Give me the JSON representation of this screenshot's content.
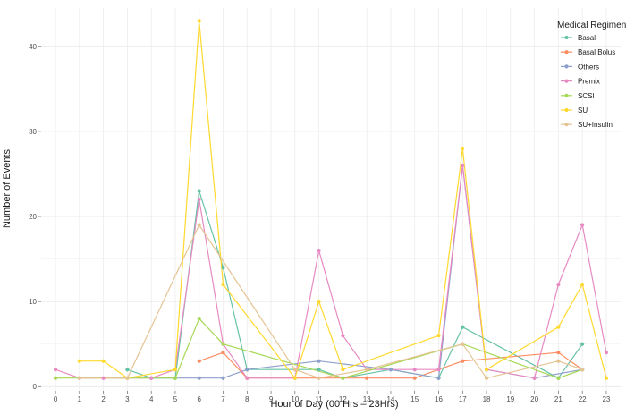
{
  "chart_data": {
    "type": "line",
    "title": "",
    "xlabel": "Hour of Day (00 Hrs – 23Hrs)",
    "ylabel": "Number of Events",
    "x_ticks": [
      "0",
      "1",
      "2",
      "3",
      "4",
      "5",
      "6",
      "7",
      "8",
      "9",
      "10",
      "11",
      "12",
      "13",
      "14",
      "15",
      "16",
      "17",
      "18",
      "19",
      "20",
      "21",
      "22",
      "23"
    ],
    "y_ticks": [
      0,
      10,
      20,
      30,
      40
    ],
    "xlim": [
      -0.6,
      23.6
    ],
    "ylim": [
      -0.5,
      44.5
    ],
    "grid": true,
    "legend": {
      "title": "Medical Regimen",
      "position": "top-right"
    },
    "series": [
      {
        "name": "Basal",
        "color": "#66C2A5",
        "points": [
          [
            3,
            2
          ],
          [
            4,
            1
          ],
          [
            5,
            1
          ],
          [
            6,
            23
          ],
          [
            7,
            14
          ],
          [
            8,
            2
          ],
          [
            11,
            2
          ],
          [
            12,
            1
          ],
          [
            14,
            2
          ],
          [
            16,
            1
          ],
          [
            17,
            7
          ],
          [
            21,
            1
          ],
          [
            22,
            5
          ]
        ]
      },
      {
        "name": "Basal Bolus",
        "color": "#FC8D62",
        "points": [
          [
            6,
            3
          ],
          [
            7,
            4
          ],
          [
            8,
            1
          ],
          [
            13,
            1
          ],
          [
            15,
            1
          ],
          [
            17,
            3
          ],
          [
            21,
            4
          ],
          [
            22,
            2
          ]
        ]
      },
      {
        "name": "Others",
        "color": "#8DA0CB",
        "points": [
          [
            4,
            1
          ],
          [
            6,
            1
          ],
          [
            7,
            1
          ],
          [
            8,
            2
          ],
          [
            11,
            3
          ],
          [
            14,
            2
          ],
          [
            16,
            1
          ],
          [
            17,
            26
          ],
          [
            18,
            2
          ],
          [
            20,
            1
          ],
          [
            22,
            2
          ]
        ]
      },
      {
        "name": "Premix",
        "color": "#E78AC3",
        "points": [
          [
            0,
            2
          ],
          [
            1,
            1
          ],
          [
            2,
            1
          ],
          [
            4,
            1
          ],
          [
            5,
            2
          ],
          [
            6,
            22
          ],
          [
            7,
            5
          ],
          [
            8,
            1
          ],
          [
            10,
            1
          ],
          [
            11,
            16
          ],
          [
            12,
            6
          ],
          [
            13,
            2
          ],
          [
            15,
            2
          ],
          [
            16,
            2
          ],
          [
            17,
            26
          ],
          [
            18,
            2
          ],
          [
            20,
            1
          ],
          [
            21,
            12
          ],
          [
            22,
            19
          ],
          [
            23,
            4
          ]
        ]
      },
      {
        "name": "SCSI",
        "color": "#A6D854",
        "points": [
          [
            0,
            1
          ],
          [
            5,
            1
          ],
          [
            6,
            8
          ],
          [
            7,
            5
          ],
          [
            12,
            1
          ],
          [
            17,
            5
          ],
          [
            21,
            1
          ],
          [
            22,
            2
          ]
        ]
      },
      {
        "name": "SU",
        "color": "#FFD92F",
        "points": [
          [
            1,
            3
          ],
          [
            2,
            3
          ],
          [
            3,
            1
          ],
          [
            5,
            2
          ],
          [
            6,
            43
          ],
          [
            7,
            12
          ],
          [
            10,
            1
          ],
          [
            11,
            10
          ],
          [
            12,
            2
          ],
          [
            16,
            6
          ],
          [
            17,
            28
          ],
          [
            18,
            2
          ],
          [
            21,
            7
          ],
          [
            22,
            12
          ],
          [
            23,
            1
          ]
        ]
      },
      {
        "name": "SU+Insulin",
        "color": "#E5C494",
        "points": [
          [
            1,
            1
          ],
          [
            3,
            1
          ],
          [
            6,
            19
          ],
          [
            10,
            2
          ],
          [
            11,
            1
          ],
          [
            13,
            2
          ],
          [
            17,
            5
          ],
          [
            18,
            1
          ],
          [
            21,
            3
          ],
          [
            22,
            2
          ]
        ]
      }
    ]
  }
}
